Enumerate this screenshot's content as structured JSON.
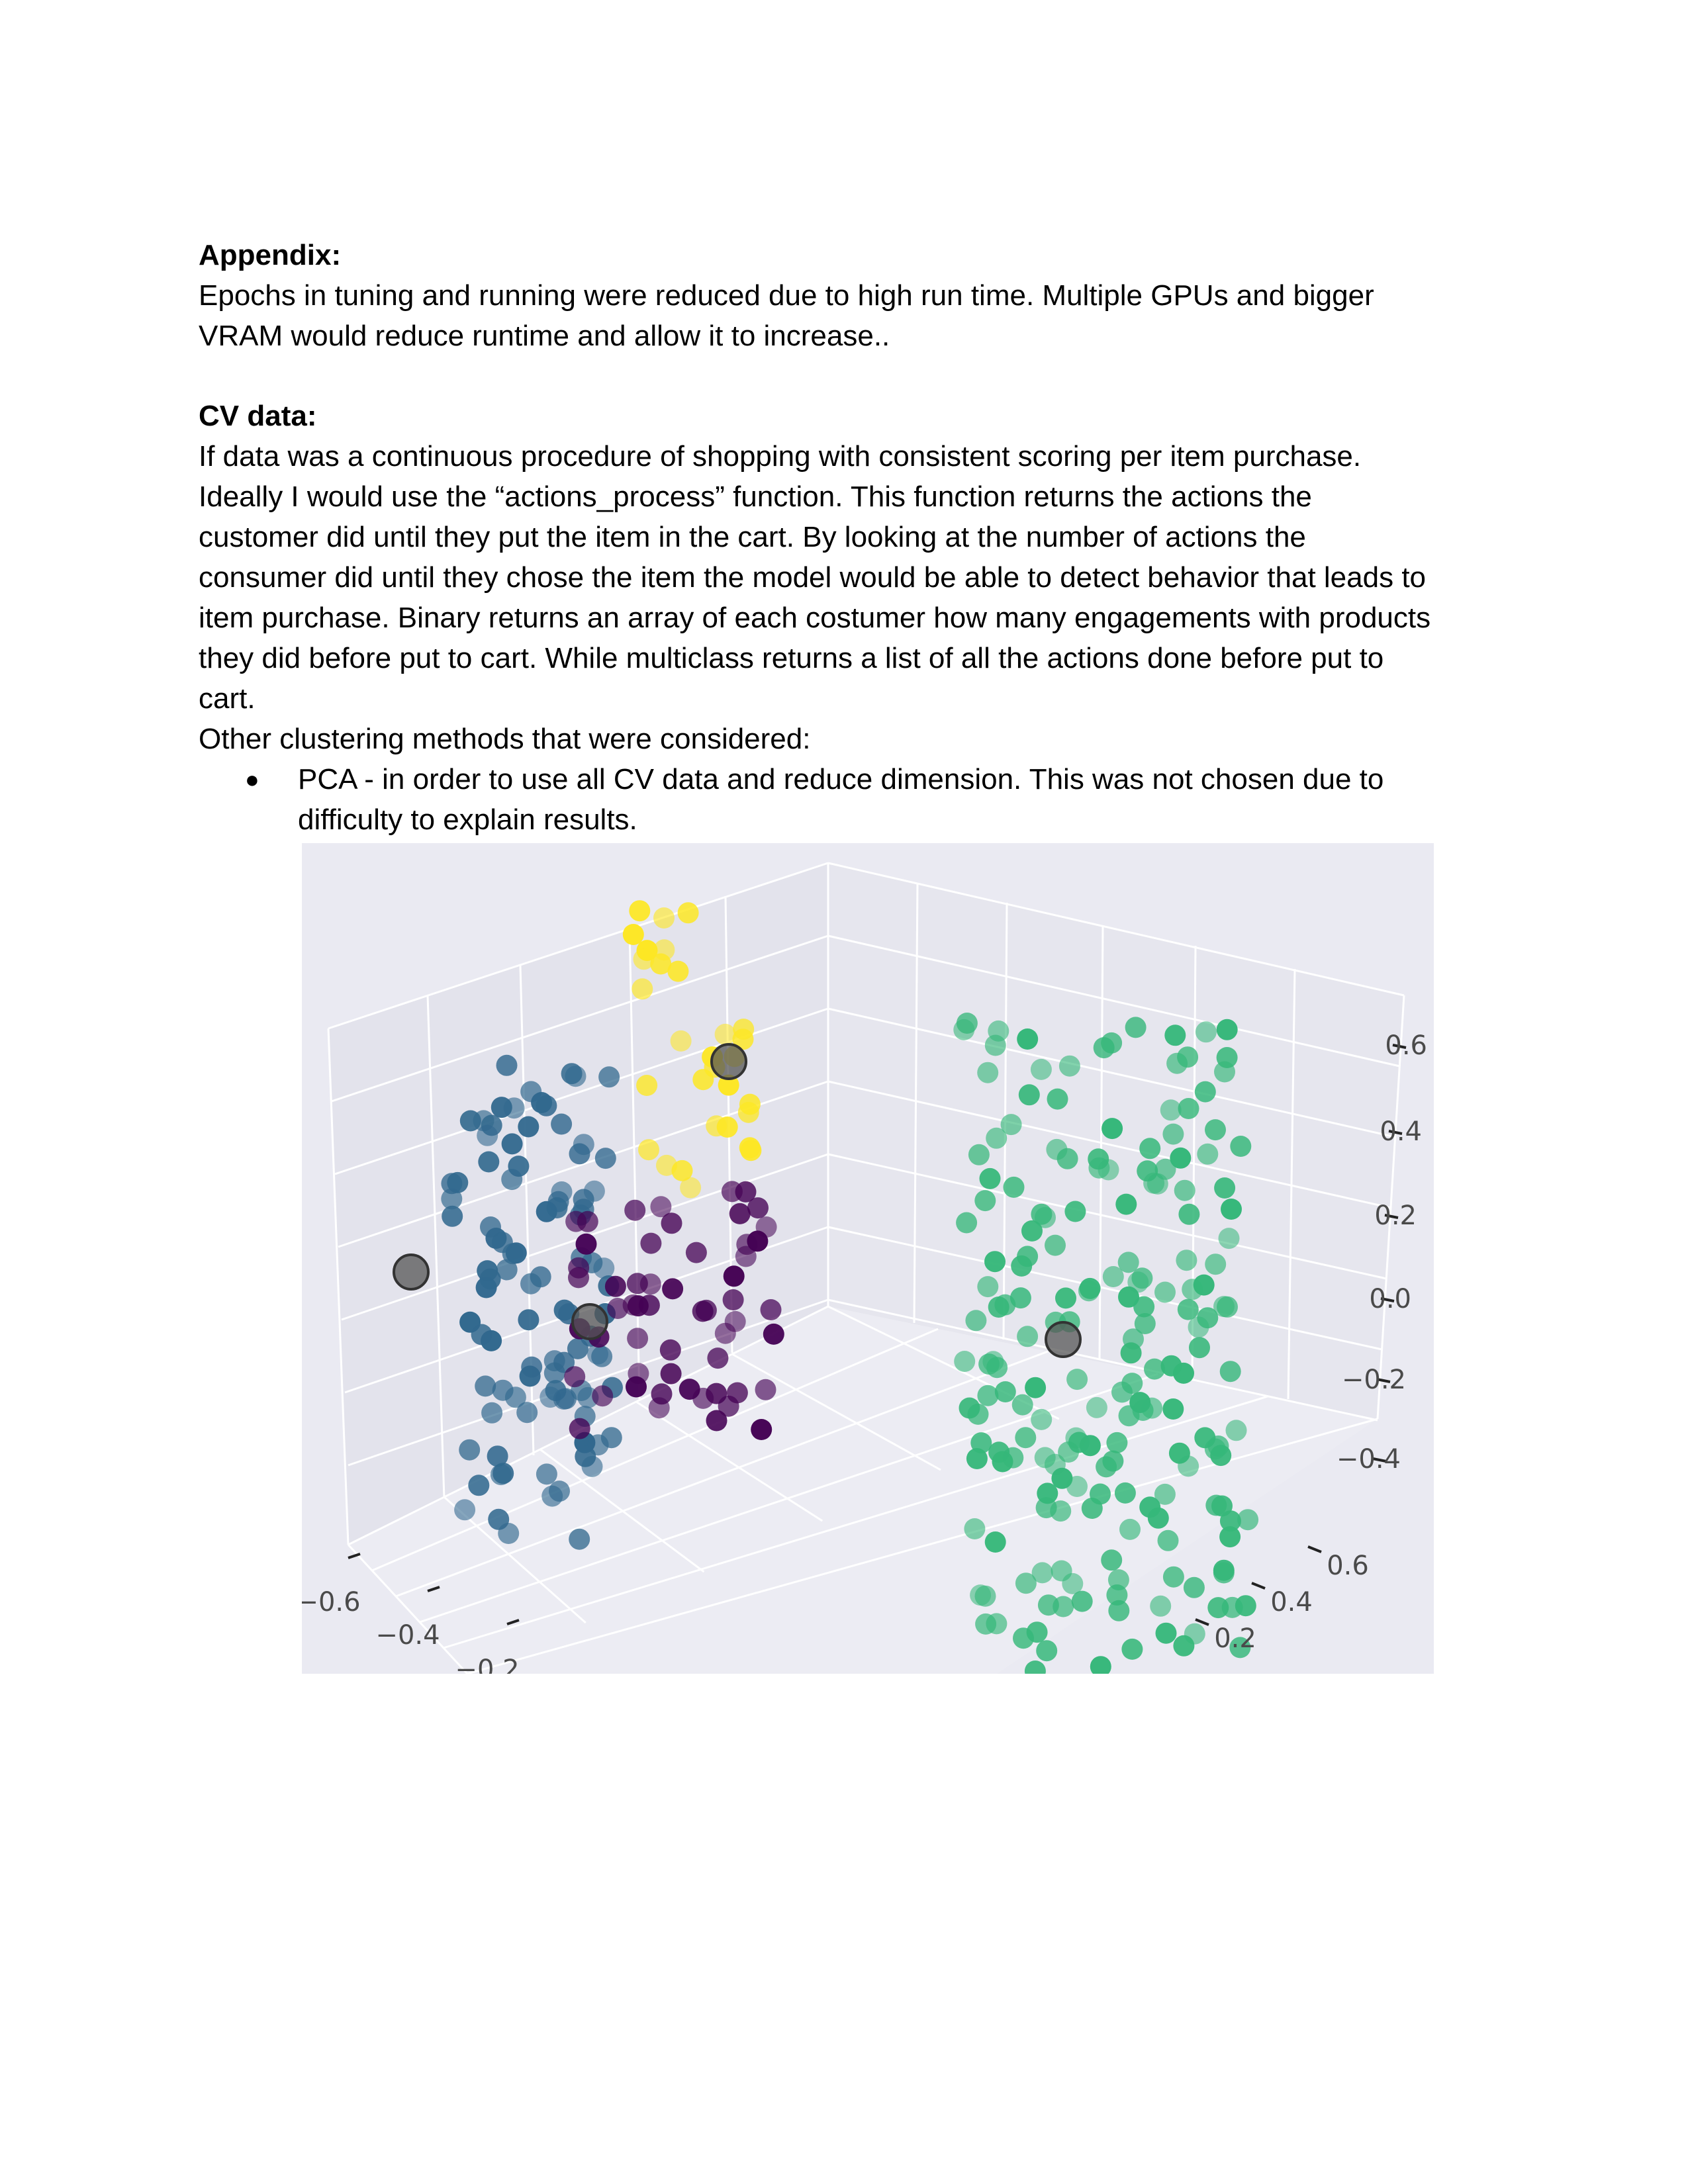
{
  "appendix": {
    "heading": "Appendix:",
    "lines": [
      "Epochs in tuning and running were reduced due to high run time. Multiple GPUs and bigger",
      "VRAM would reduce runtime and allow it to increase.."
    ]
  },
  "cv_data": {
    "heading": "CV data:",
    "lines": [
      "If data was a continuous procedure of shopping with consistent scoring per item purchase.",
      "Ideally I would use the “actions_process” function. This function returns the actions the",
      "customer did until they put the item in the cart. By looking at the number of actions the",
      "consumer did until they chose the item the model would be able to detect behavior that leads to",
      "item purchase. Binary returns an array of each costumer how many engagements with products",
      "they did before put to cart. While multiclass returns a list of all the actions done before put to",
      "cart."
    ],
    "other_methods_intro": "Other clustering methods that were considered:",
    "bullets": [
      {
        "marker": "●",
        "lines": [
          "PCA - in order to use all CV data and reduce dimension. This was not chosen due to",
          "difficulty to explain results."
        ]
      }
    ]
  },
  "chart_data": {
    "type": "scatter",
    "projection": "3d",
    "title": "",
    "grid": true,
    "background": "#eaeaf2",
    "z_ticks": [
      "0.6",
      "0.4",
      "0.2",
      "0.0",
      "−0.2",
      "−0.4"
    ],
    "x_ticks": [
      "−0.6",
      "−0.4",
      "−0.2"
    ],
    "y_ticks": [
      "0.6",
      "0.4",
      "0.2"
    ],
    "clusters": [
      {
        "color": "#31688e",
        "points": 95,
        "centroid": [
          -0.45,
          0.05,
          0.0
        ]
      },
      {
        "color": "#fde725",
        "points": 30,
        "centroid": [
          -0.3,
          0.5,
          0.5
        ]
      },
      {
        "color": "#440154",
        "points": 55,
        "centroid": [
          -0.25,
          0.1,
          -0.05
        ]
      },
      {
        "color": "#35b779",
        "points": 190,
        "centroid": [
          0.35,
          -0.2,
          -0.15
        ]
      }
    ],
    "centroid_color": "#555555"
  }
}
